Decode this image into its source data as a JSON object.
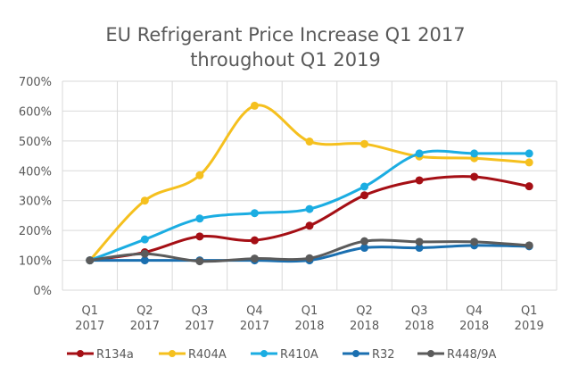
{
  "chart_data": {
    "type": "line",
    "title": [
      "EU Refrigerant Price Increase Q1 2017",
      "throughout Q1 2019"
    ],
    "xlabel": "",
    "ylabel": "",
    "categories": [
      [
        "Q1",
        "2017"
      ],
      [
        "Q2",
        "2017"
      ],
      [
        "Q3",
        "2017"
      ],
      [
        "Q4",
        "2017"
      ],
      [
        "Q1",
        "2018"
      ],
      [
        "Q2",
        "2018"
      ],
      [
        "Q3",
        "2018"
      ],
      [
        "Q4",
        "2018"
      ],
      [
        "Q1",
        "2019"
      ]
    ],
    "ylim": [
      0,
      700
    ],
    "yticks": [
      0,
      100,
      200,
      300,
      400,
      500,
      600,
      700
    ],
    "ytick_labels": [
      "0%",
      "100%",
      "200%",
      "300%",
      "400%",
      "500%",
      "600%",
      "700%"
    ],
    "grid": true,
    "smooth": true,
    "legend_position": "bottom",
    "series": [
      {
        "name": "R134a",
        "color": "#A50F15",
        "values": [
          100,
          127,
          180,
          167,
          216,
          318,
          368,
          380,
          348
        ]
      },
      {
        "name": "R404A",
        "color": "#F5C01E",
        "values": [
          100,
          300,
          385,
          618,
          498,
          490,
          448,
          442,
          428
        ]
      },
      {
        "name": "R410A",
        "color": "#1BADE2",
        "values": [
          100,
          170,
          240,
          258,
          272,
          347,
          458,
          458,
          458
        ]
      },
      {
        "name": "R32",
        "color": "#1A6FB0",
        "values": [
          100,
          100,
          100,
          100,
          100,
          142,
          142,
          150,
          147
        ]
      },
      {
        "name": "R448/9A",
        "color": "#5B5B5B",
        "values": [
          100,
          122,
          97,
          106,
          107,
          164,
          162,
          162,
          150
        ]
      }
    ]
  }
}
